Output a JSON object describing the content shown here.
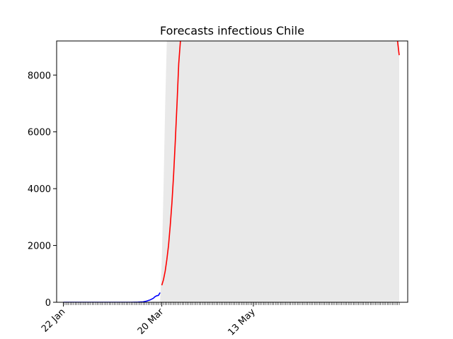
{
  "chart_data": {
    "type": "line",
    "title": "Forecasts infectious Chile",
    "xlabel": "",
    "ylabel": "",
    "x_range": [
      "2020-01-18",
      "2020-08-12"
    ],
    "ylim": [
      0,
      9200
    ],
    "y_ticks": [
      0,
      2000,
      4000,
      6000,
      8000
    ],
    "x_ticks": [
      {
        "date": "2020-01-22",
        "label": "22 Jan"
      },
      {
        "date": "2020-03-20",
        "label": "20 Mar"
      },
      {
        "date": "2020-05-13",
        "label": "13 May"
      }
    ],
    "minor_ticks": "daily",
    "grid": false,
    "series": [
      {
        "role": "observed",
        "color": "#0000ff",
        "points": [
          [
            "2020-01-22",
            0
          ],
          [
            "2020-02-05",
            0
          ],
          [
            "2020-02-20",
            0
          ],
          [
            "2020-03-02",
            0
          ],
          [
            "2020-03-06",
            5
          ],
          [
            "2020-03-09",
            15
          ],
          [
            "2020-03-11",
            40
          ],
          [
            "2020-03-13",
            80
          ],
          [
            "2020-03-15",
            140
          ],
          [
            "2020-03-16",
            200
          ],
          [
            "2020-03-17",
            230
          ],
          [
            "2020-03-18",
            240
          ],
          [
            "2020-03-19",
            340
          ]
        ]
      },
      {
        "role": "forecast",
        "color": "#ff0000",
        "points": [
          [
            "2020-03-20",
            600
          ],
          [
            "2020-03-21",
            800
          ],
          [
            "2020-03-22",
            1100
          ],
          [
            "2020-03-23",
            1500
          ],
          [
            "2020-03-24",
            2000
          ],
          [
            "2020-03-25",
            2700
          ],
          [
            "2020-03-26",
            3500
          ],
          [
            "2020-03-27",
            4500
          ],
          [
            "2020-03-28",
            5700
          ],
          [
            "2020-03-29",
            7000
          ],
          [
            "2020-03-30",
            8400
          ],
          [
            "2020-03-31",
            9200
          ]
        ],
        "tail_points": [
          [
            "2020-08-06",
            9200
          ],
          [
            "2020-08-07",
            8700
          ]
        ]
      }
    ],
    "bands": [
      {
        "color": "#e9e9e9",
        "lower_points": [
          [
            "2020-03-19",
            0
          ],
          [
            "2020-08-07",
            0
          ]
        ],
        "upper_points": [
          [
            "2020-03-19",
            0
          ],
          [
            "2020-03-20",
            1500
          ],
          [
            "2020-03-21",
            4000
          ],
          [
            "2020-03-22",
            7000
          ],
          [
            "2020-03-23",
            9200
          ],
          [
            "2020-08-07",
            9200
          ]
        ]
      }
    ]
  }
}
